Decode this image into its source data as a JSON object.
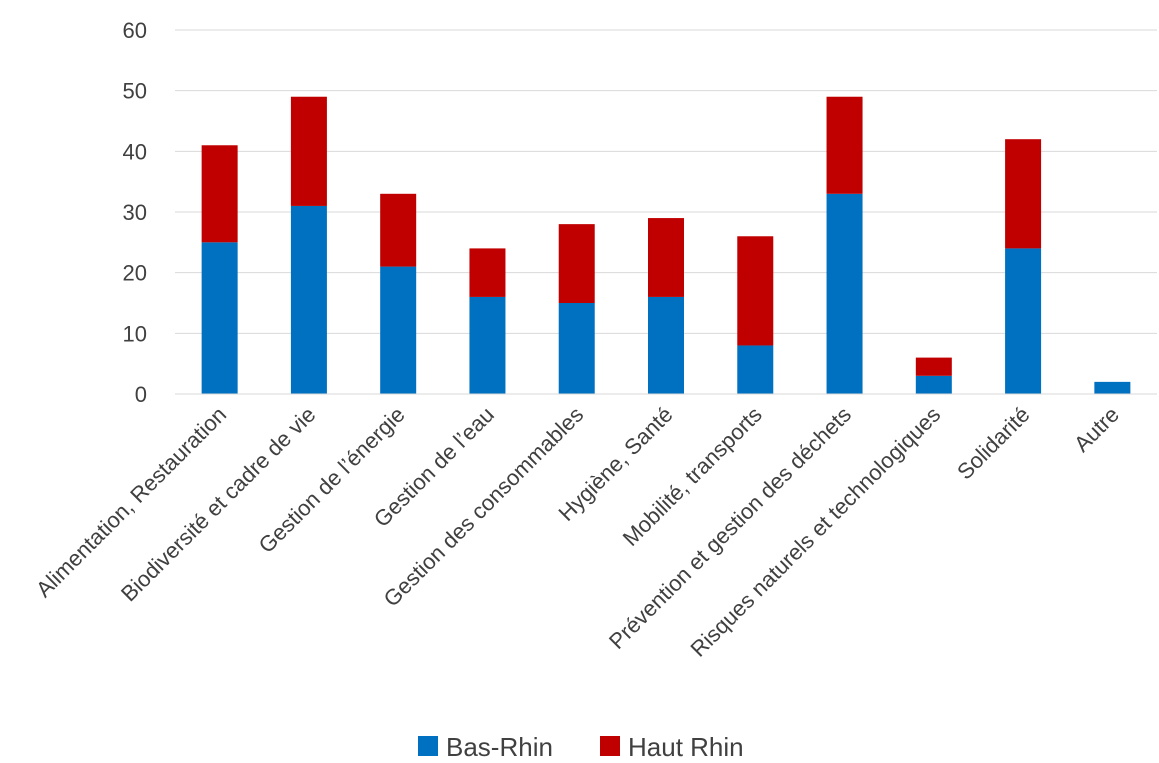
{
  "chart_data": {
    "type": "bar",
    "stacked": true,
    "categories": [
      "Alimentation, Restauration",
      "Biodiversité et cadre de vie",
      "Gestion de l’énergie",
      "Gestion de l’eau",
      "Gestion des consommables",
      "Hygiène, Santé",
      "Mobilité, transports",
      "Prévention et gestion des déchets",
      "Risques naturels et technologiques",
      "Solidarité",
      "Autre"
    ],
    "series": [
      {
        "name": "Bas-Rhin",
        "color": "#0070C0",
        "values": [
          25,
          31,
          21,
          16,
          15,
          16,
          8,
          33,
          3,
          24,
          2
        ]
      },
      {
        "name": "Haut Rhin",
        "color": "#C00000",
        "values": [
          16,
          18,
          12,
          8,
          13,
          13,
          18,
          16,
          3,
          18,
          0
        ]
      }
    ],
    "ylim": [
      0,
      60
    ],
    "yticks": [
      0,
      10,
      20,
      30,
      40,
      50,
      60
    ],
    "grid": true,
    "legend_position": "bottom",
    "title": "",
    "xlabel": "",
    "ylabel": ""
  }
}
